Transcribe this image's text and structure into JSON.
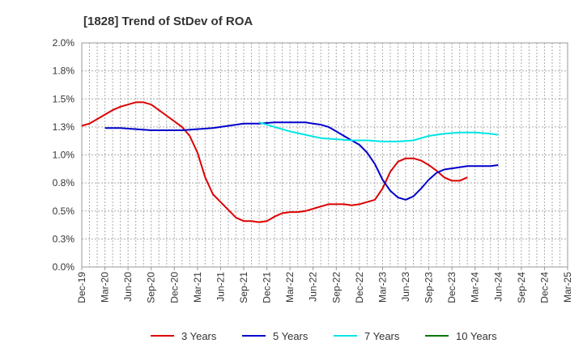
{
  "chart_data": {
    "type": "line",
    "title": "[1828]  Trend of StDev of ROA",
    "xlabel": "",
    "ylabel": "",
    "x_ticks": [
      "Dec-19",
      "Mar-20",
      "Jun-20",
      "Sep-20",
      "Dec-20",
      "Mar-21",
      "Jun-21",
      "Sep-21",
      "Dec-21",
      "Mar-22",
      "Jun-22",
      "Sep-22",
      "Dec-22",
      "Mar-23",
      "Jun-23",
      "Sep-23",
      "Dec-23",
      "Mar-24",
      "Jun-24",
      "Sep-24",
      "Dec-24",
      "Mar-25"
    ],
    "y_ticks": [
      "0.0%",
      "0.3%",
      "0.5%",
      "0.8%",
      "1.0%",
      "1.3%",
      "1.5%",
      "1.8%",
      "2.0%"
    ],
    "ylim": [
      0,
      2.0
    ],
    "grid": true,
    "legend_position": "bottom",
    "series": [
      {
        "name": "3 Years",
        "color": "#dd0000",
        "points": [
          [
            0,
            1.26
          ],
          [
            1,
            1.28
          ],
          [
            2,
            1.32
          ],
          [
            3,
            1.36
          ],
          [
            4,
            1.4
          ],
          [
            5,
            1.43
          ],
          [
            6,
            1.45
          ],
          [
            7,
            1.47
          ],
          [
            8,
            1.47
          ],
          [
            9,
            1.45
          ],
          [
            10,
            1.4
          ],
          [
            11,
            1.35
          ],
          [
            12,
            1.3
          ],
          [
            13,
            1.25
          ],
          [
            14,
            1.17
          ],
          [
            15,
            1.02
          ],
          [
            16,
            0.8
          ],
          [
            17,
            0.65
          ],
          [
            18,
            0.58
          ],
          [
            19,
            0.51
          ],
          [
            20,
            0.44
          ],
          [
            21,
            0.41
          ],
          [
            22,
            0.41
          ],
          [
            23,
            0.4
          ],
          [
            24,
            0.41
          ],
          [
            25,
            0.45
          ],
          [
            26,
            0.48
          ],
          [
            27,
            0.49
          ],
          [
            28,
            0.49
          ],
          [
            29,
            0.5
          ],
          [
            30,
            0.52
          ],
          [
            31,
            0.54
          ],
          [
            32,
            0.56
          ],
          [
            33,
            0.56
          ],
          [
            34,
            0.56
          ],
          [
            35,
            0.55
          ],
          [
            36,
            0.56
          ],
          [
            37,
            0.58
          ],
          [
            38,
            0.6
          ],
          [
            39,
            0.7
          ],
          [
            40,
            0.85
          ],
          [
            41,
            0.94
          ],
          [
            42,
            0.97
          ],
          [
            43,
            0.97
          ],
          [
            44,
            0.95
          ],
          [
            45,
            0.91
          ],
          [
            46,
            0.86
          ],
          [
            47,
            0.8
          ],
          [
            48,
            0.77
          ],
          [
            49,
            0.77
          ],
          [
            50,
            0.8
          ]
        ]
      },
      {
        "name": "5 Years",
        "color": "#0000cc",
        "points": [
          [
            3,
            1.24
          ],
          [
            5,
            1.24
          ],
          [
            7,
            1.23
          ],
          [
            9,
            1.22
          ],
          [
            11,
            1.22
          ],
          [
            13,
            1.22
          ],
          [
            15,
            1.23
          ],
          [
            17,
            1.24
          ],
          [
            19,
            1.26
          ],
          [
            21,
            1.28
          ],
          [
            23,
            1.28
          ],
          [
            25,
            1.29
          ],
          [
            27,
            1.29
          ],
          [
            29,
            1.29
          ],
          [
            30,
            1.28
          ],
          [
            31,
            1.27
          ],
          [
            32,
            1.25
          ],
          [
            33,
            1.21
          ],
          [
            34,
            1.17
          ],
          [
            35,
            1.13
          ],
          [
            36,
            1.09
          ],
          [
            37,
            1.02
          ],
          [
            38,
            0.92
          ],
          [
            39,
            0.78
          ],
          [
            40,
            0.68
          ],
          [
            41,
            0.62
          ],
          [
            42,
            0.6
          ],
          [
            43,
            0.63
          ],
          [
            44,
            0.7
          ],
          [
            45,
            0.78
          ],
          [
            46,
            0.84
          ],
          [
            47,
            0.87
          ],
          [
            48,
            0.88
          ],
          [
            49,
            0.89
          ],
          [
            50,
            0.9
          ],
          [
            51,
            0.9
          ],
          [
            52,
            0.9
          ],
          [
            53,
            0.9
          ],
          [
            54,
            0.91
          ]
        ]
      },
      {
        "name": "7 Years",
        "color": "#00e5e5",
        "points": [
          [
            23,
            1.29
          ],
          [
            25,
            1.25
          ],
          [
            27,
            1.21
          ],
          [
            29,
            1.18
          ],
          [
            31,
            1.15
          ],
          [
            33,
            1.14
          ],
          [
            35,
            1.13
          ],
          [
            37,
            1.13
          ],
          [
            39,
            1.12
          ],
          [
            41,
            1.12
          ],
          [
            43,
            1.13
          ],
          [
            45,
            1.17
          ],
          [
            47,
            1.19
          ],
          [
            49,
            1.2
          ],
          [
            51,
            1.2
          ],
          [
            53,
            1.19
          ],
          [
            54,
            1.18
          ]
        ]
      },
      {
        "name": "10 Years",
        "color": "#007700",
        "points": []
      }
    ]
  }
}
